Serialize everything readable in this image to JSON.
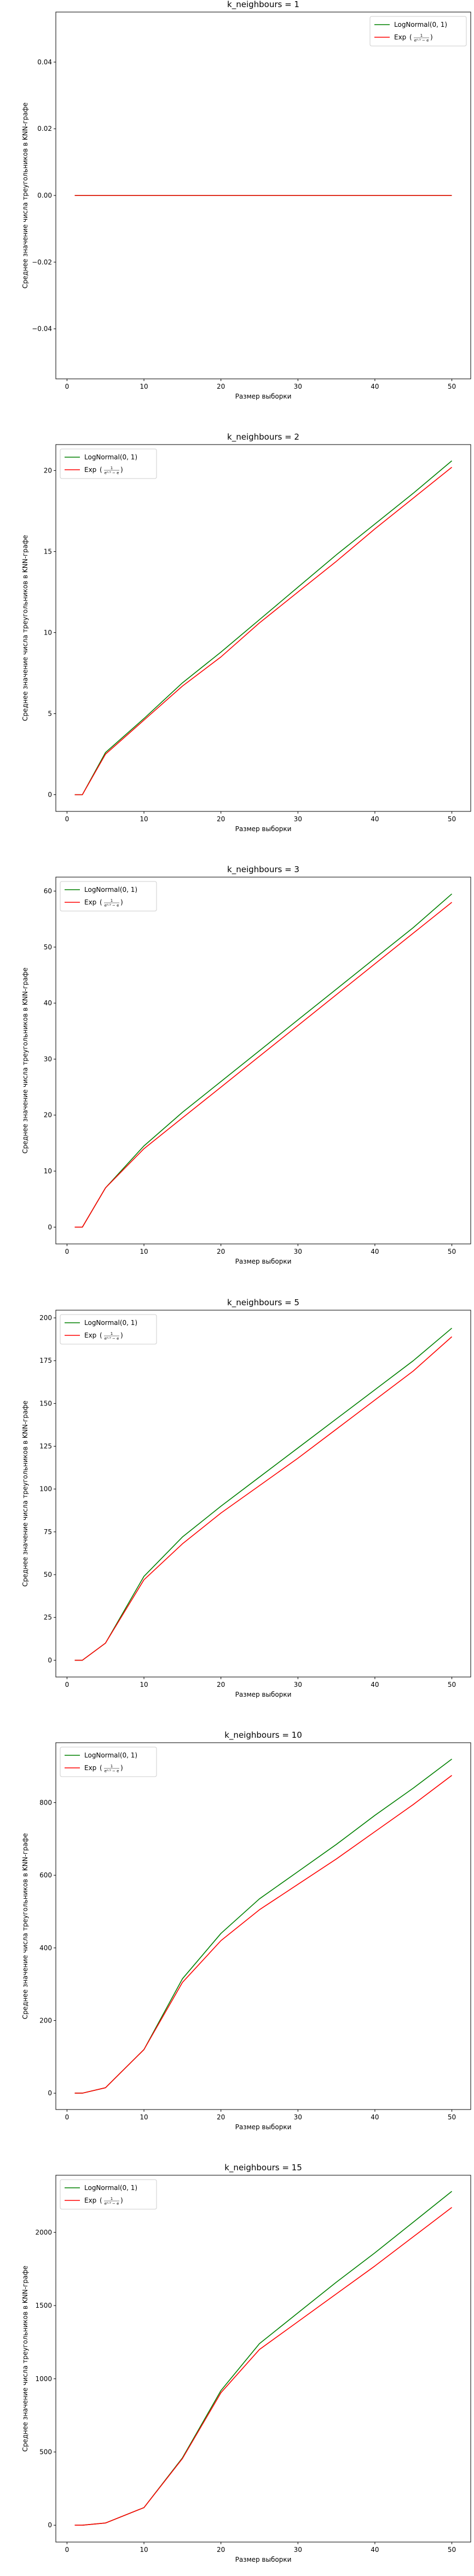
{
  "chart_data": [
    {
      "type": "line",
      "title": "k_neighbours = 1",
      "xlabel": "Размер выборки",
      "ylabel": "Среднее значение числа треугольников в KNN-графе",
      "x": [
        1,
        2,
        5,
        10,
        15,
        20,
        25,
        30,
        35,
        40,
        45,
        50
      ],
      "xlim": [
        -1.45,
        52.45
      ],
      "ylim": [
        -0.055,
        0.055
      ],
      "xticks": [
        0,
        10,
        20,
        30,
        40,
        50
      ],
      "yticks": [
        -0.04,
        -0.02,
        0.0,
        0.02,
        0.04
      ],
      "ytick_labels": [
        "−0.04",
        "−0.02",
        "0.00",
        "0.02",
        "0.04"
      ],
      "legend_position": "upper right",
      "grid": false,
      "series": [
        {
          "name": "LogNormal(0, 1)",
          "color": "#008000",
          "values": [
            0,
            0,
            0,
            0,
            0,
            0,
            0,
            0,
            0,
            0,
            0,
            0
          ]
        },
        {
          "name": "Exp",
          "color": "#ff0000",
          "values": [
            0,
            0,
            0,
            0,
            0,
            0,
            0,
            0,
            0,
            0,
            0,
            0
          ]
        }
      ]
    },
    {
      "type": "line",
      "title": "k_neighbours = 2",
      "xlabel": "Размер выборки",
      "ylabel": "Среднее значение числа треугольников в KNN-графе",
      "x": [
        1,
        2,
        5,
        10,
        15,
        20,
        25,
        30,
        35,
        40,
        45,
        50
      ],
      "xlim": [
        -1.45,
        52.45
      ],
      "ylim": [
        -1.03,
        21.6
      ],
      "xticks": [
        0,
        10,
        20,
        30,
        40,
        50
      ],
      "yticks": [
        0,
        5,
        10,
        15,
        20
      ],
      "ytick_labels": [
        "0",
        "5",
        "10",
        "15",
        "20"
      ],
      "legend_position": "upper left",
      "grid": false,
      "series": [
        {
          "name": "LogNormal(0, 1)",
          "color": "#008000",
          "values": [
            0,
            0,
            2.6,
            4.7,
            6.9,
            8.8,
            10.8,
            12.8,
            14.8,
            16.7,
            18.6,
            20.6
          ]
        },
        {
          "name": "Exp",
          "color": "#ff0000",
          "values": [
            0,
            0,
            2.5,
            4.6,
            6.7,
            8.5,
            10.6,
            12.5,
            14.4,
            16.4,
            18.3,
            20.2
          ]
        }
      ]
    },
    {
      "type": "line",
      "title": "k_neighbours = 3",
      "xlabel": "Размер выборки",
      "ylabel": "Среднее значение числа треугольников в KNN-графе",
      "x": [
        1,
        2,
        5,
        10,
        15,
        20,
        25,
        30,
        35,
        40,
        45,
        50
      ],
      "xlim": [
        -1.45,
        52.45
      ],
      "ylim": [
        -3.0,
        62.5
      ],
      "xticks": [
        0,
        10,
        20,
        30,
        40,
        50
      ],
      "yticks": [
        0,
        10,
        20,
        30,
        40,
        50,
        60
      ],
      "ytick_labels": [
        "0",
        "10",
        "20",
        "30",
        "40",
        "50",
        "60"
      ],
      "legend_position": "upper left",
      "grid": false,
      "series": [
        {
          "name": "LogNormal(0, 1)",
          "color": "#008000",
          "values": [
            0,
            0,
            7.0,
            14.5,
            20.5,
            26.0,
            31.5,
            37.0,
            42.5,
            48.0,
            53.5,
            59.5
          ]
        },
        {
          "name": "Exp",
          "color": "#ff0000",
          "values": [
            0,
            0,
            7.0,
            14.0,
            19.5,
            25.0,
            30.5,
            36.0,
            41.5,
            47.0,
            52.5,
            58.0
          ]
        }
      ]
    },
    {
      "type": "line",
      "title": "k_neighbours = 5",
      "xlabel": "Размер выборки",
      "ylabel": "Среднее значение числа треугольников в KNN-графе",
      "x": [
        1,
        2,
        5,
        10,
        15,
        20,
        25,
        30,
        35,
        40,
        45,
        50
      ],
      "xlim": [
        -1.45,
        52.45
      ],
      "ylim": [
        -9.8,
        204.5
      ],
      "xticks": [
        0,
        10,
        20,
        30,
        40,
        50
      ],
      "yticks": [
        0,
        25,
        50,
        75,
        100,
        125,
        150,
        175,
        200
      ],
      "ytick_labels": [
        "0",
        "25",
        "50",
        "75",
        "100",
        "125",
        "150",
        "175",
        "200"
      ],
      "legend_position": "upper left",
      "grid": false,
      "series": [
        {
          "name": "LogNormal(0, 1)",
          "color": "#008000",
          "values": [
            0,
            0,
            10,
            49,
            72,
            90,
            107,
            124,
            141,
            158,
            175,
            194
          ]
        },
        {
          "name": "Exp",
          "color": "#ff0000",
          "values": [
            0,
            0,
            10,
            47,
            68,
            86,
            102,
            118,
            135,
            152,
            169,
            189
          ]
        }
      ]
    },
    {
      "type": "line",
      "title": "k_neighbours = 10",
      "xlabel": "Размер выборки",
      "ylabel": "Среднее значение числа треугольников в KNN-графе",
      "x": [
        1,
        2,
        5,
        10,
        15,
        20,
        25,
        30,
        35,
        40,
        45,
        50
      ],
      "xlim": [
        -1.45,
        52.45
      ],
      "ylim": [
        -45.0,
        965.0
      ],
      "xticks": [
        0,
        10,
        20,
        30,
        40,
        50
      ],
      "yticks": [
        0,
        200,
        400,
        600,
        800
      ],
      "ytick_labels": [
        "0",
        "200",
        "400",
        "600",
        "800"
      ],
      "legend_position": "upper left",
      "grid": false,
      "series": [
        {
          "name": "LogNormal(0, 1)",
          "color": "#008000",
          "values": [
            0,
            0,
            15,
            120,
            315,
            440,
            535,
            610,
            685,
            765,
            840,
            920
          ]
        },
        {
          "name": "Exp",
          "color": "#ff0000",
          "values": [
            0,
            0,
            15,
            120,
            305,
            420,
            505,
            575,
            645,
            720,
            795,
            875
          ]
        }
      ]
    },
    {
      "type": "line",
      "title": "k_neighbours = 15",
      "xlabel": "Размер выборки",
      "ylabel": "Среднее значение числа треугольников в KNN-графе",
      "x": [
        1,
        2,
        5,
        10,
        15,
        20,
        25,
        30,
        35,
        40,
        45,
        50
      ],
      "xlim": [
        -1.45,
        52.45
      ],
      "ylim": [
        -115.0,
        2390.0
      ],
      "xticks": [
        0,
        10,
        20,
        30,
        40,
        50
      ],
      "yticks": [
        0,
        500,
        1000,
        1500,
        2000
      ],
      "ytick_labels": [
        "0",
        "500",
        "1000",
        "1500",
        "2000"
      ],
      "legend_position": "upper left",
      "grid": false,
      "series": [
        {
          "name": "LogNormal(0, 1)",
          "color": "#008000",
          "values": [
            0,
            0,
            15,
            120,
            460,
            920,
            1240,
            1450,
            1660,
            1860,
            2070,
            2280
          ]
        },
        {
          "name": "Exp",
          "color": "#ff0000",
          "values": [
            0,
            0,
            15,
            120,
            455,
            905,
            1200,
            1390,
            1580,
            1770,
            1970,
            2170
          ]
        }
      ]
    }
  ]
}
